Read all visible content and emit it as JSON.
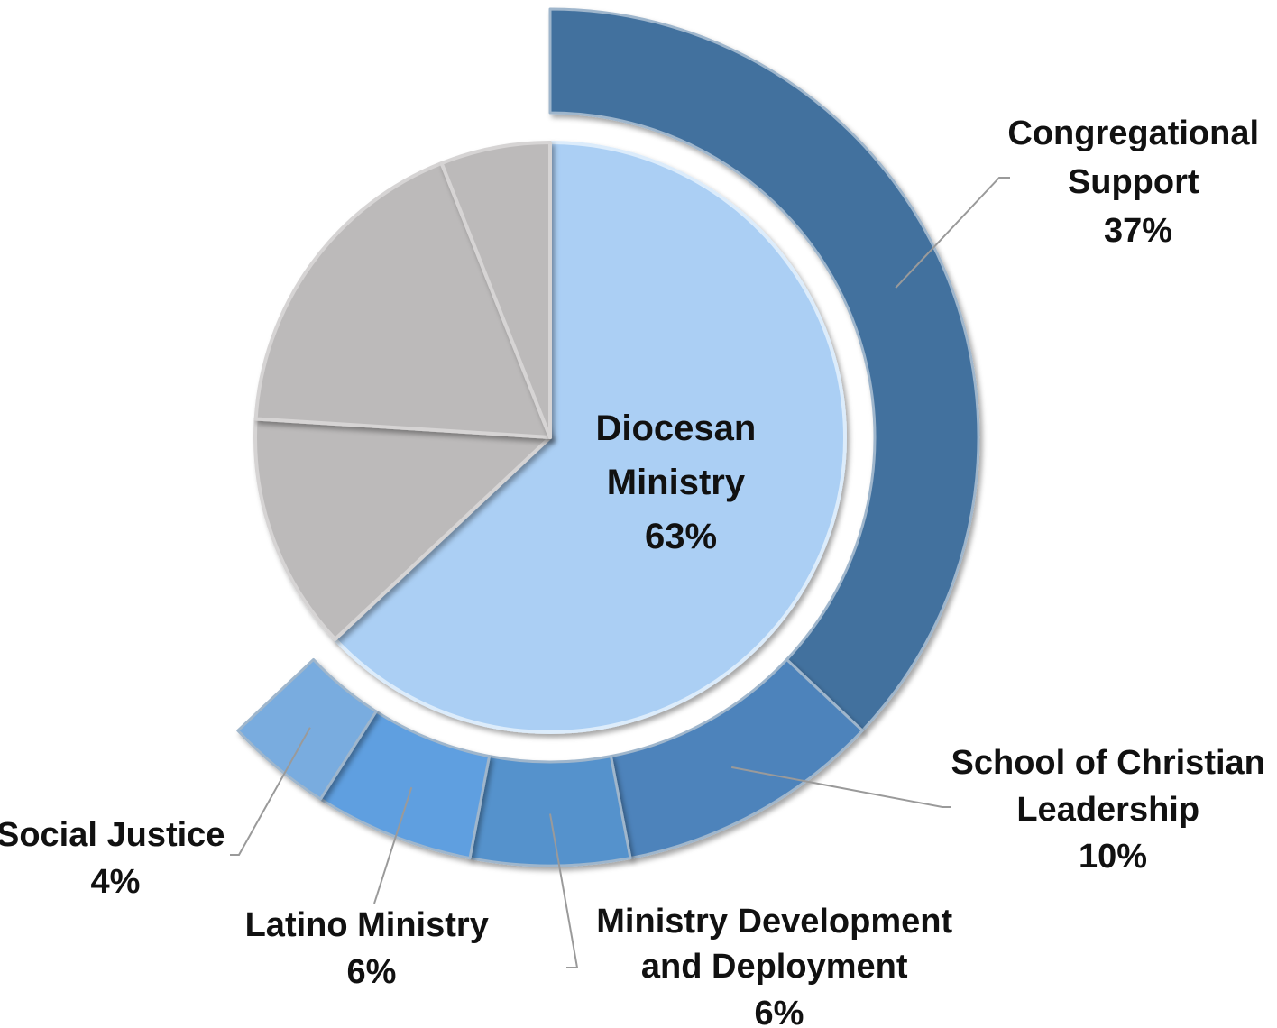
{
  "chart_data": {
    "type": "pie",
    "title": "",
    "colors": {
      "main_slice": "#abcff4",
      "outer_ring_top": "#43719e",
      "outer_ring_bottom": [
        "#4e83bb",
        "#5592cc",
        "#5e9fe0",
        "#79acdf"
      ],
      "unlabeled_slices": "#bcbaba"
    },
    "main_pie": [
      {
        "name": "Diocesan Ministry",
        "value": 63,
        "label": "63%"
      },
      {
        "name": "",
        "value": 13,
        "label": ""
      },
      {
        "name": "",
        "value": 18,
        "label": ""
      },
      {
        "name": "",
        "value": 6,
        "label": ""
      }
    ],
    "outer_ring": [
      {
        "name": "Congregational Support",
        "value": 37,
        "label": "37%",
        "label_lines": [
          "Congregational",
          "Support"
        ]
      },
      {
        "name": "School of Christian Leadership",
        "value": 10,
        "label": "10%",
        "label_lines": [
          "School of Christian",
          "Leadership"
        ]
      },
      {
        "name": "Ministry Development and Deployment",
        "value": 6,
        "label": "6%",
        "label_lines": [
          "Ministry Development",
          "and Deployment"
        ]
      },
      {
        "name": "Latino Ministry",
        "value": 6,
        "label": "6%",
        "label_lines": [
          "Latino Ministry"
        ]
      },
      {
        "name": "Social Justice",
        "value": 4,
        "label": "4%",
        "label_lines": [
          "Social Justice"
        ]
      }
    ],
    "center_label_lines": [
      "Diocesan",
      "Ministry"
    ]
  }
}
